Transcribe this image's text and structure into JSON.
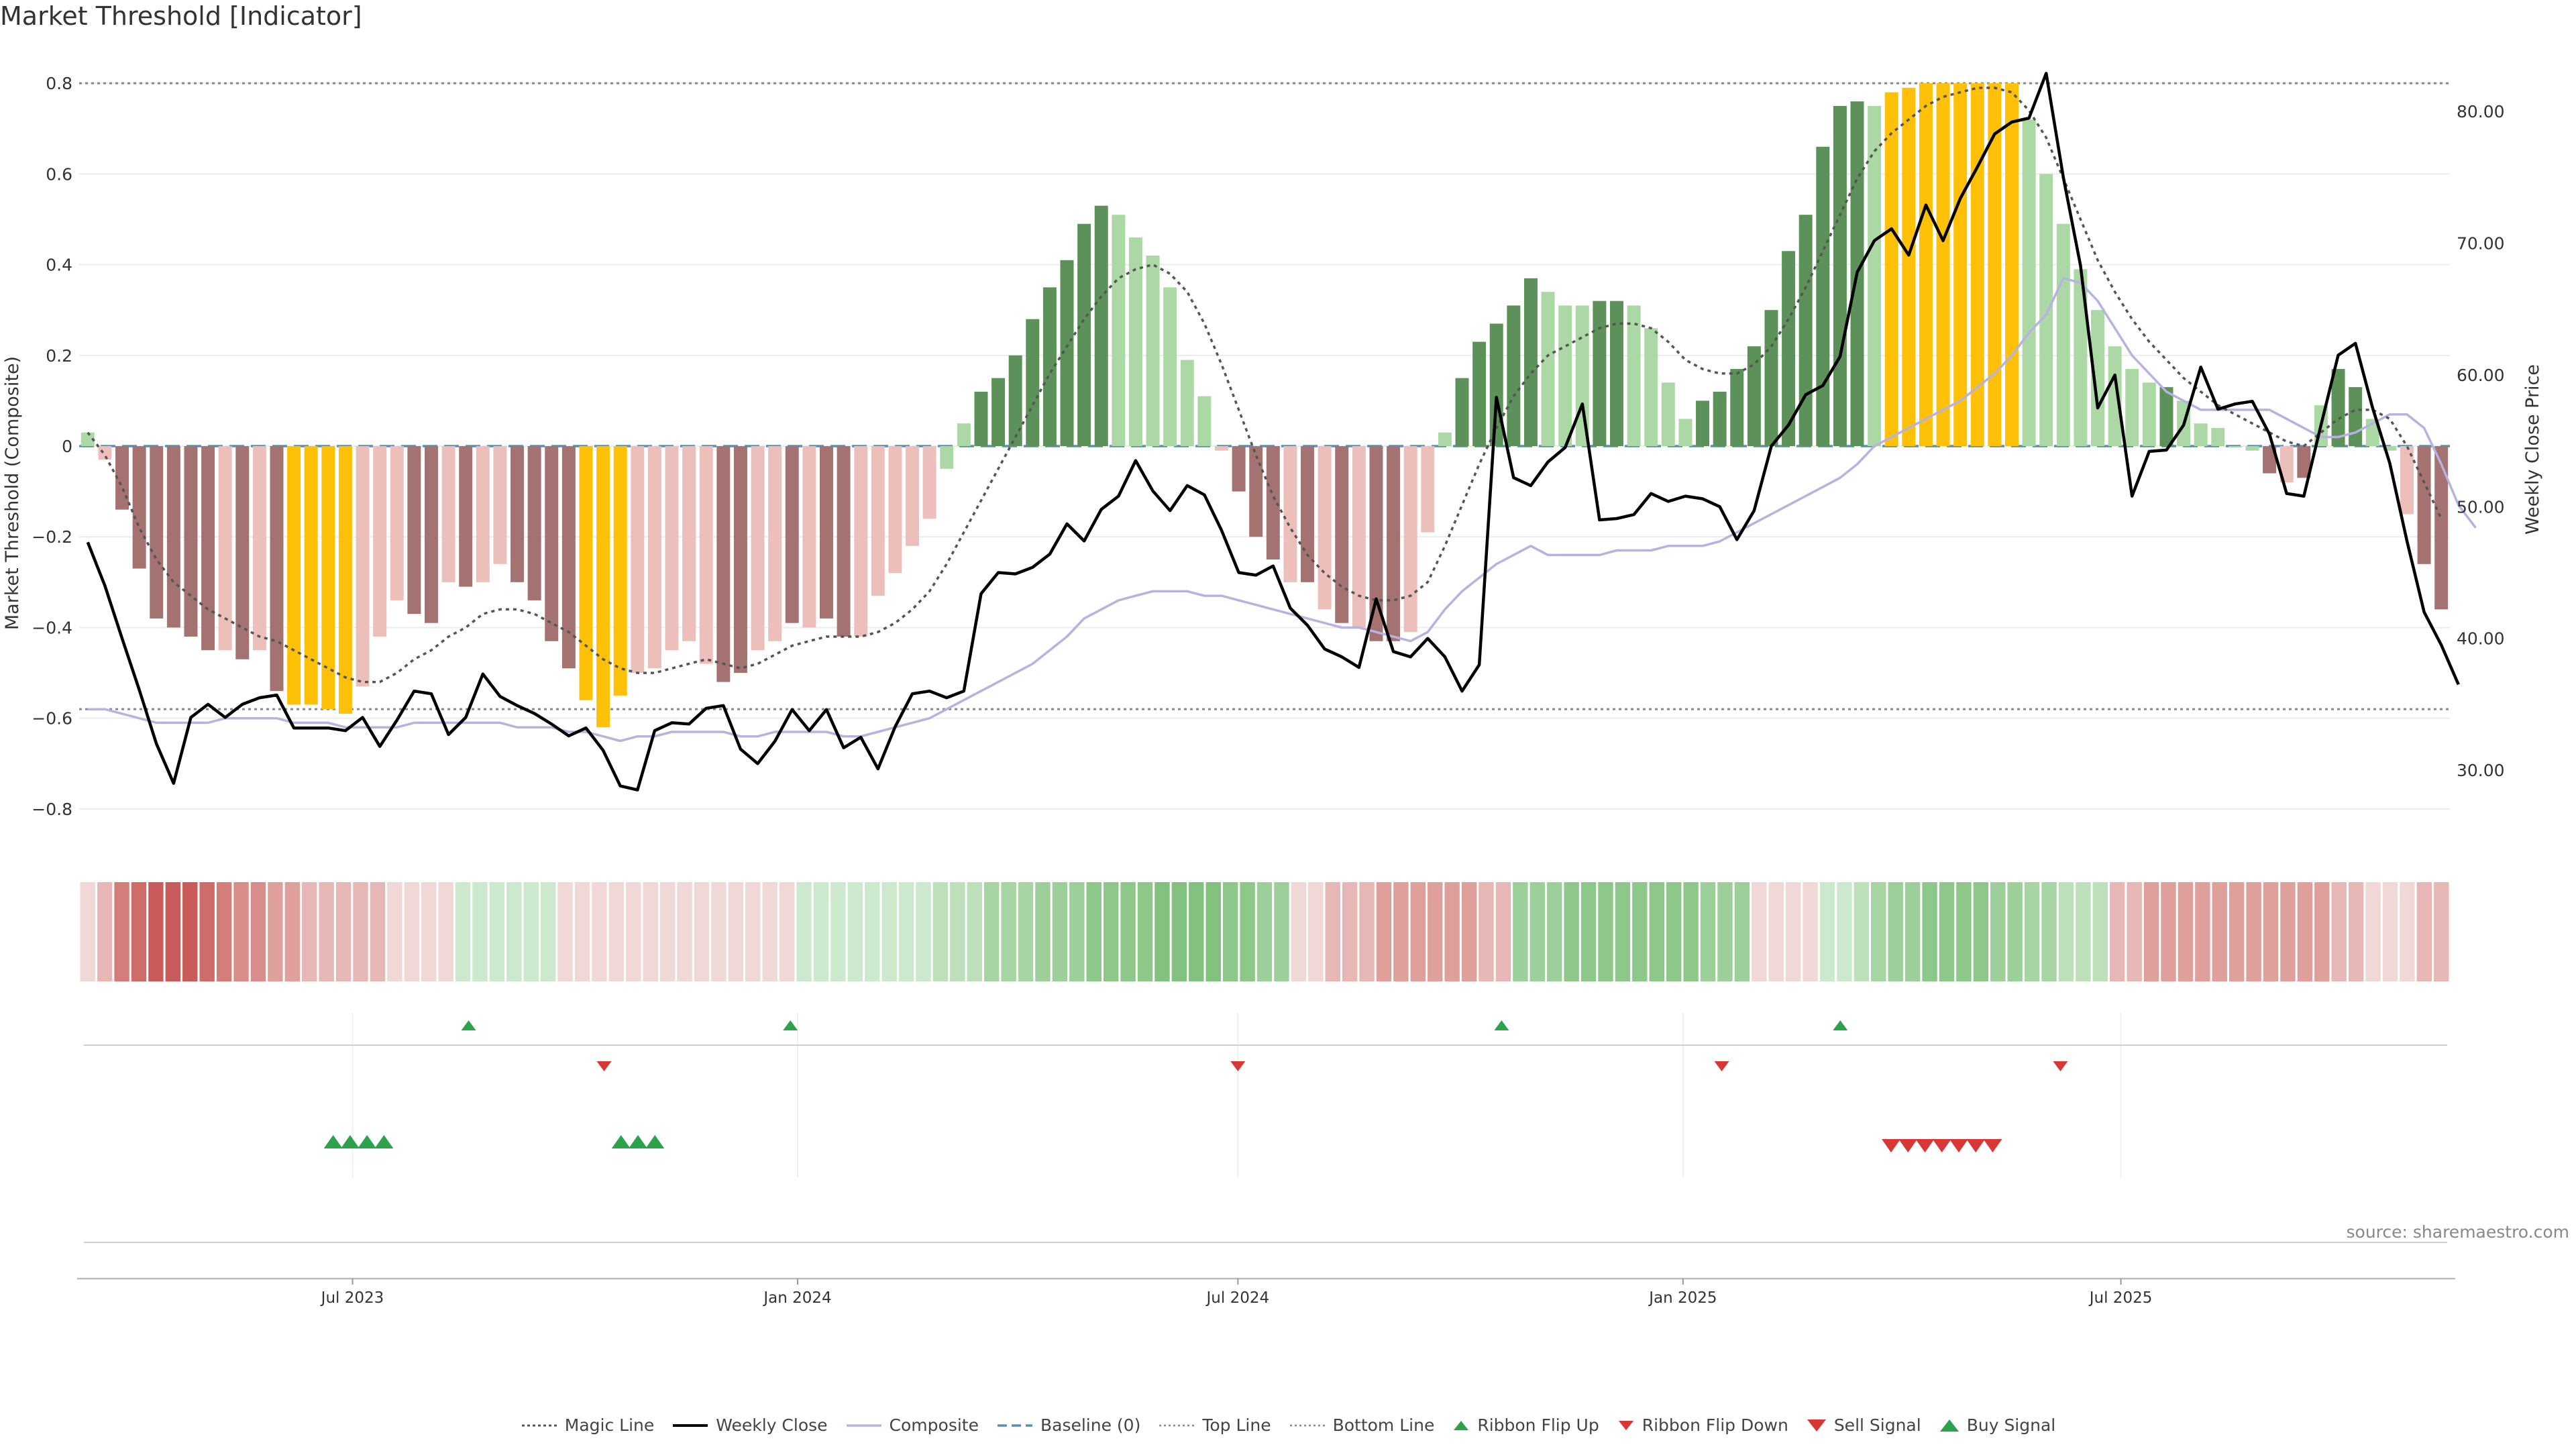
{
  "title": "Market Threshold [Indicator]",
  "source": "source: sharemaestro.com",
  "colors": {
    "dark_red": "#a47371",
    "light_red": "#ecbfbb",
    "dark_green": "#5c9159",
    "light_green": "#acd8a5",
    "gold": "#ffc107",
    "composite": "#b8b2e0",
    "magic": "#555555",
    "close": "#000000",
    "baseline": "#5b8fb0",
    "guide": "#888888",
    "up": "#2ca24a",
    "down": "#d93636"
  },
  "legend": [
    {
      "label": "Magic Line",
      "icon": "dotted-line"
    },
    {
      "label": "Weekly Close",
      "icon": "solid-line"
    },
    {
      "label": "Composite",
      "icon": "lavender-line"
    },
    {
      "label": "Baseline (0)",
      "icon": "dashed-line"
    },
    {
      "label": "Top Line",
      "icon": "dotted-line"
    },
    {
      "label": "Bottom Line",
      "icon": "dotted-line"
    },
    {
      "label": "Ribbon Flip Up",
      "icon": "small-green-up-triangle"
    },
    {
      "label": "Ribbon Flip Down",
      "icon": "small-red-down-triangle"
    },
    {
      "label": "Sell Signal",
      "icon": "red-down-triangle"
    },
    {
      "label": "Buy Signal",
      "icon": "green-up-triangle"
    }
  ],
  "chart_data": {
    "type": "bar",
    "title": "Market Threshold [Indicator]",
    "ylabel": "Market Threshold (Composite)",
    "y2label": "Weekly Close Price",
    "ylim": [
      -0.88,
      0.88
    ],
    "y2lim": [
      24.3,
      84.9
    ],
    "yticks": [
      "0.8",
      "0.6",
      "0.4",
      "0.2",
      "0",
      "−0.2",
      "−0.4",
      "−0.6",
      "−0.8"
    ],
    "yticks_values": [
      0.8,
      0.6,
      0.4,
      0.2,
      0,
      -0.2,
      -0.4,
      -0.6,
      -0.8
    ],
    "y2ticks": [
      "80.00",
      "70.00",
      "60.00",
      "50.00",
      "40.00",
      "30.00"
    ],
    "y2ticks_values": [
      80,
      70,
      60,
      50,
      40,
      30
    ],
    "xlim": [
      "2023-03-10",
      "2025-11-14"
    ],
    "xticks": [
      "Jul 2023",
      "Jan 2024",
      "Jul 2024",
      "Jan 2025",
      "Jul 2025"
    ],
    "xticks_dates": [
      "2023-07-01",
      "2024-01-01",
      "2024-07-01",
      "2025-01-01",
      "2025-07-01"
    ],
    "top_line": 0.8,
    "bottom_line": -0.58,
    "baseline": 0,
    "grid": true,
    "legend_position": "bottom-center",
    "composite": [
      0.03,
      -0.03,
      -0.14,
      -0.27,
      -0.38,
      -0.4,
      -0.42,
      -0.45,
      -0.45,
      -0.47,
      -0.45,
      -0.54,
      -0.57,
      -0.57,
      -0.58,
      -0.59,
      -0.53,
      -0.42,
      -0.34,
      -0.37,
      -0.39,
      -0.3,
      -0.31,
      -0.3,
      -0.26,
      -0.3,
      -0.34,
      -0.43,
      -0.49,
      -0.56,
      -0.62,
      -0.55,
      -0.5,
      -0.49,
      -0.45,
      -0.43,
      -0.48,
      -0.52,
      -0.5,
      -0.45,
      -0.43,
      -0.39,
      -0.4,
      -0.38,
      -0.42,
      -0.42,
      -0.33,
      -0.28,
      -0.22,
      -0.16,
      -0.05,
      0.05,
      0.12,
      0.15,
      0.2,
      0.28,
      0.35,
      0.41,
      0.49,
      0.53,
      0.51,
      0.46,
      0.42,
      0.35,
      0.19,
      0.11,
      -0.01,
      -0.1,
      -0.2,
      -0.25,
      -0.3,
      -0.3,
      -0.36,
      -0.39,
      -0.4,
      -0.43,
      -0.43,
      -0.41,
      -0.19,
      0.03,
      0.15,
      0.23,
      0.27,
      0.31,
      0.37,
      0.34,
      0.31,
      0.31,
      0.32,
      0.32,
      0.31,
      0.26,
      0.14,
      0.06,
      0.1,
      0.12,
      0.17,
      0.22,
      0.3,
      0.43,
      0.51,
      0.66,
      0.75,
      0.76,
      0.75,
      0.78,
      0.79,
      0.8,
      0.8,
      0.8,
      0.8,
      0.8,
      0.8,
      0.72,
      0.6,
      0.49,
      0.39,
      0.3,
      0.22,
      0.17,
      0.14,
      0.13,
      0.1,
      0.05,
      0.04,
      0.0,
      -0.01,
      -0.06,
      -0.08,
      -0.07,
      0.09,
      0.17,
      0.13,
      0.06,
      -0.01,
      -0.15,
      -0.26,
      -0.36
    ],
    "bar_colors": [
      "light_green",
      "light_red",
      "dark_red",
      "dark_red",
      "dark_red",
      "dark_red",
      "dark_red",
      "dark_red",
      "light_red",
      "dark_red",
      "light_red",
      "dark_red",
      "gold",
      "gold",
      "gold",
      "gold",
      "light_red",
      "light_red",
      "light_red",
      "dark_red",
      "dark_red",
      "light_red",
      "dark_red",
      "light_red",
      "light_red",
      "dark_red",
      "dark_red",
      "dark_red",
      "dark_red",
      "gold",
      "gold",
      "gold",
      "light_red",
      "light_red",
      "light_red",
      "light_red",
      "light_red",
      "dark_red",
      "dark_red",
      "light_red",
      "light_red",
      "dark_red",
      "light_red",
      "dark_red",
      "dark_red",
      "light_red",
      "light_red",
      "light_red",
      "light_red",
      "light_red",
      "light_green",
      "light_green",
      "dark_green",
      "dark_green",
      "dark_green",
      "dark_green",
      "dark_green",
      "dark_green",
      "dark_green",
      "dark_green",
      "light_green",
      "light_green",
      "light_green",
      "light_green",
      "light_green",
      "light_green",
      "light_red",
      "dark_red",
      "dark_red",
      "dark_red",
      "light_red",
      "dark_red",
      "light_red",
      "dark_red",
      "light_red",
      "dark_red",
      "dark_red",
      "light_red",
      "light_red",
      "light_green",
      "dark_green",
      "dark_green",
      "dark_green",
      "dark_green",
      "dark_green",
      "light_green",
      "light_green",
      "light_green",
      "dark_green",
      "dark_green",
      "light_green",
      "light_green",
      "light_green",
      "light_green",
      "dark_green",
      "dark_green",
      "dark_green",
      "dark_green",
      "dark_green",
      "dark_green",
      "dark_green",
      "dark_green",
      "dark_green",
      "dark_green",
      "light_green",
      "gold",
      "gold",
      "gold",
      "gold",
      "gold",
      "gold",
      "gold",
      "gold",
      "light_green",
      "light_green",
      "light_green",
      "light_green",
      "light_green",
      "light_green",
      "light_green",
      "light_green",
      "dark_green",
      "light_green",
      "light_green",
      "light_green",
      "light_green",
      "light_green",
      "dark_red",
      "light_red",
      "dark_red",
      "light_green",
      "dark_green",
      "dark_green",
      "light_green",
      "light_green",
      "light_red",
      "dark_red",
      "dark_red",
      "dark_red"
    ],
    "magic_line": [
      0.03,
      -0.02,
      -0.09,
      -0.18,
      -0.25,
      -0.3,
      -0.33,
      -0.36,
      -0.38,
      -0.4,
      -0.42,
      -0.43,
      -0.45,
      -0.47,
      -0.49,
      -0.51,
      -0.52,
      -0.52,
      -0.5,
      -0.47,
      -0.45,
      -0.42,
      -0.4,
      -0.37,
      -0.36,
      -0.36,
      -0.37,
      -0.39,
      -0.41,
      -0.44,
      -0.47,
      -0.49,
      -0.5,
      -0.5,
      -0.49,
      -0.48,
      -0.47,
      -0.48,
      -0.49,
      -0.48,
      -0.46,
      -0.44,
      -0.43,
      -0.42,
      -0.42,
      -0.42,
      -0.41,
      -0.39,
      -0.36,
      -0.32,
      -0.26,
      -0.19,
      -0.12,
      -0.05,
      0.02,
      0.09,
      0.16,
      0.22,
      0.28,
      0.33,
      0.37,
      0.39,
      0.4,
      0.38,
      0.34,
      0.27,
      0.18,
      0.08,
      -0.02,
      -0.11,
      -0.18,
      -0.24,
      -0.28,
      -0.31,
      -0.33,
      -0.34,
      -0.34,
      -0.33,
      -0.3,
      -0.22,
      -0.13,
      -0.04,
      0.04,
      0.11,
      0.16,
      0.2,
      0.22,
      0.24,
      0.26,
      0.27,
      0.27,
      0.26,
      0.23,
      0.19,
      0.17,
      0.16,
      0.16,
      0.18,
      0.22,
      0.28,
      0.35,
      0.43,
      0.51,
      0.59,
      0.65,
      0.69,
      0.72,
      0.75,
      0.77,
      0.78,
      0.79,
      0.79,
      0.78,
      0.74,
      0.68,
      0.59,
      0.5,
      0.41,
      0.34,
      0.28,
      0.23,
      0.19,
      0.15,
      0.12,
      0.09,
      0.07,
      0.05,
      0.03,
      0.01,
      0.0,
      0.03,
      0.06,
      0.08,
      0.08,
      0.06,
      0.0,
      -0.08,
      -0.16
    ],
    "composite_line": [
      -0.58,
      -0.58,
      -0.59,
      -0.6,
      -0.61,
      -0.61,
      -0.61,
      -0.61,
      -0.6,
      -0.6,
      -0.6,
      -0.6,
      -0.61,
      -0.61,
      -0.61,
      -0.62,
      -0.62,
      -0.62,
      -0.62,
      -0.61,
      -0.61,
      -0.61,
      -0.61,
      -0.61,
      -0.61,
      -0.62,
      -0.62,
      -0.62,
      -0.63,
      -0.63,
      -0.64,
      -0.65,
      -0.64,
      -0.64,
      -0.63,
      -0.63,
      -0.63,
      -0.63,
      -0.64,
      -0.64,
      -0.63,
      -0.63,
      -0.63,
      -0.63,
      -0.64,
      -0.64,
      -0.63,
      -0.62,
      -0.61,
      -0.6,
      -0.58,
      -0.56,
      -0.54,
      -0.52,
      -0.5,
      -0.48,
      -0.45,
      -0.42,
      -0.38,
      -0.36,
      -0.34,
      -0.33,
      -0.32,
      -0.32,
      -0.32,
      -0.33,
      -0.33,
      -0.34,
      -0.35,
      -0.36,
      -0.37,
      -0.38,
      -0.39,
      -0.4,
      -0.4,
      -0.41,
      -0.42,
      -0.43,
      -0.41,
      -0.36,
      -0.32,
      -0.29,
      -0.26,
      -0.24,
      -0.22,
      -0.24,
      -0.24,
      -0.24,
      -0.24,
      -0.23,
      -0.23,
      -0.23,
      -0.22,
      -0.22,
      -0.22,
      -0.21,
      -0.19,
      -0.17,
      -0.15,
      -0.13,
      -0.11,
      -0.09,
      -0.07,
      -0.04,
      0.0,
      0.02,
      0.04,
      0.06,
      0.08,
      0.1,
      0.13,
      0.16,
      0.2,
      0.25,
      0.29,
      0.37,
      0.36,
      0.32,
      0.26,
      0.2,
      0.16,
      0.12,
      0.1,
      0.08,
      0.08,
      0.08,
      0.08,
      0.08,
      0.06,
      0.04,
      0.02,
      0.02,
      0.03,
      0.05,
      0.07,
      0.07,
      0.04,
      -0.04,
      -0.13,
      -0.18
    ],
    "weekly_close": [
      47.3,
      44.0,
      40.0,
      36.1,
      32.0,
      29.0,
      34.0,
      35.0,
      34.0,
      35.0,
      35.5,
      35.7,
      33.2,
      33.2,
      33.2,
      33.0,
      34.0,
      31.8,
      33.8,
      36.0,
      35.8,
      32.7,
      34.0,
      37.3,
      35.6,
      34.9,
      34.3,
      33.5,
      32.6,
      33.2,
      31.5,
      28.8,
      28.5,
      33.0,
      33.6,
      33.5,
      34.7,
      34.9,
      31.6,
      30.5,
      32.2,
      34.6,
      33.0,
      34.6,
      31.7,
      32.5,
      30.1,
      33.3,
      35.8,
      36.0,
      35.5,
      36.0,
      43.4,
      45.0,
      44.9,
      45.4,
      46.4,
      48.7,
      47.4,
      49.8,
      50.8,
      53.5,
      51.2,
      49.7,
      51.6,
      50.9,
      48.2,
      45.0,
      44.8,
      45.5,
      42.3,
      41.0,
      39.2,
      38.6,
      37.8,
      43.0,
      39.0,
      38.6,
      40.0,
      38.6,
      36.0,
      38.0,
      58.3,
      52.2,
      51.6,
      53.4,
      54.5,
      57.8,
      49.0,
      49.1,
      49.4,
      51.0,
      50.4,
      50.8,
      50.6,
      50.0,
      47.5,
      49.7,
      54.6,
      56.2,
      58.5,
      59.2,
      61.4,
      67.8,
      70.2,
      71.1,
      69.1,
      72.9,
      70.2,
      73.4,
      75.8,
      78.3,
      79.2,
      79.5,
      82.9,
      75.0,
      68.3,
      57.5,
      60.0,
      50.8,
      54.2,
      54.3,
      56.2,
      60.6,
      57.4,
      57.8,
      58.0,
      55.5,
      51.0,
      50.8,
      56.2,
      61.5,
      62.4,
      57.5,
      53.3,
      47.4,
      42.0,
      39.5,
      36.5
    ],
    "ribbon_colors": [
      "#efd8d6",
      "#e6b7b4",
      "#d47e7b",
      "#ce6c6a",
      "#c95c5a",
      "#c95c5a",
      "#c95c5a",
      "#ce6c6a",
      "#d47e7b",
      "#d98d8a",
      "#d98d8a",
      "#dfa09c",
      "#dfa09c",
      "#e6b7b4",
      "#e6b7b4",
      "#e6b7b4",
      "#e6b7b4",
      "#e6b7b4",
      "#efd8d6",
      "#efd8d6",
      "#efd8d6",
      "#efd8d6",
      "#cde9cd",
      "#cde9cd",
      "#cde9cd",
      "#cde9cd",
      "#cde9cd",
      "#cde9cd",
      "#efd8d6",
      "#efd8d6",
      "#efd8d6",
      "#efd8d6",
      "#efd8d6",
      "#efd8d6",
      "#efd8d6",
      "#efd8d6",
      "#efd8d6",
      "#efd8d6",
      "#efd8d6",
      "#efd8d6",
      "#efd8d6",
      "#efd8d6",
      "#cde9cd",
      "#cde9cd",
      "#cde9cd",
      "#cde9cd",
      "#cde9cd",
      "#cde9cd",
      "#cde9cd",
      "#cde9cd",
      "#bde0bb",
      "#bde0bb",
      "#bde0bb",
      "#a6d4a3",
      "#a6d4a3",
      "#a6d4a3",
      "#9ccf99",
      "#9ccf99",
      "#9ccf99",
      "#8dc78a",
      "#8dc78a",
      "#8dc78a",
      "#8dc78a",
      "#82c17e",
      "#82c17e",
      "#82c17e",
      "#82c17e",
      "#8dc78a",
      "#8dc78a",
      "#9ccf99",
      "#9ccf99",
      "#efd8d6",
      "#efd8d6",
      "#e6b7b4",
      "#e6b7b4",
      "#e6b7b4",
      "#dfa09c",
      "#dfa09c",
      "#dfa09c",
      "#dfa09c",
      "#dfa09c",
      "#dfa09c",
      "#e6b7b4",
      "#e6b7b4",
      "#9ccf99",
      "#9ccf99",
      "#9ccf99",
      "#8dc78a",
      "#8dc78a",
      "#8dc78a",
      "#8dc78a",
      "#8dc78a",
      "#8dc78a",
      "#8dc78a",
      "#8dc78a",
      "#9ccf99",
      "#9ccf99",
      "#9ccf99",
      "#efd8d6",
      "#efd8d6",
      "#efd8d6",
      "#efd8d6",
      "#cde9cd",
      "#cde9cd",
      "#bde0bb",
      "#a6d4a3",
      "#9ccf99",
      "#9ccf99",
      "#8dc78a",
      "#8dc78a",
      "#8dc78a",
      "#8dc78a",
      "#9ccf99",
      "#9ccf99",
      "#a6d4a3",
      "#a6d4a3",
      "#bde0bb",
      "#bde0bb",
      "#bde0bb",
      "#e6b7b4",
      "#e6b7b4",
      "#dfa09c",
      "#dfa09c",
      "#dfa09c",
      "#dfa09c",
      "#dfa09c",
      "#dfa09c",
      "#dfa09c",
      "#dfa09c",
      "#dfa09c",
      "#dfa09c",
      "#dfa09c",
      "#e6b7b4",
      "#e6b7b4",
      "#efd8d6",
      "#efd8d6",
      "#efd8d6",
      "#e6b7b4",
      "#e6b7b4"
    ],
    "ribbon_flip_up_dates": [
      "2023-08-18",
      "2023-12-29",
      "2024-10-18",
      "2025-03-07"
    ],
    "ribbon_flip_down_dates": [
      "2023-10-13",
      "2024-07-01",
      "2025-01-17",
      "2025-06-06"
    ],
    "buy_signal_dates": [
      "2023-06-23",
      "2023-06-30",
      "2023-07-07",
      "2023-07-14",
      "2023-10-20",
      "2023-10-27",
      "2023-11-03"
    ],
    "sell_signal_dates": [
      "2025-03-28",
      "2025-04-04",
      "2025-04-11",
      "2025-04-18",
      "2025-04-25",
      "2025-05-02",
      "2025-05-09"
    ]
  }
}
